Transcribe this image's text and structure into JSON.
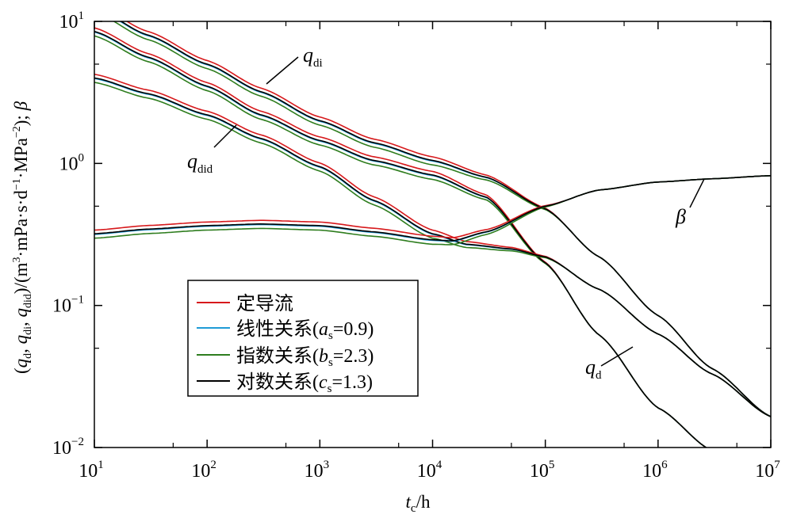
{
  "chart_data": {
    "type": "line",
    "x_scale": "log",
    "y_scale": "log",
    "xlim": [
      10,
      10000000
    ],
    "ylim": [
      0.01,
      10
    ],
    "x_ticks": [
      {
        "base": "10",
        "exp": "1"
      },
      {
        "base": "10",
        "exp": "2"
      },
      {
        "base": "10",
        "exp": "3"
      },
      {
        "base": "10",
        "exp": "4"
      },
      {
        "base": "10",
        "exp": "5"
      },
      {
        "base": "10",
        "exp": "6"
      },
      {
        "base": "10",
        "exp": "7"
      }
    ],
    "y_ticks": [
      {
        "base": "10",
        "exp": "1"
      },
      {
        "base": "10",
        "exp": "0"
      },
      {
        "base": "10",
        "exp": "−1"
      },
      {
        "base": "10",
        "exp": "−2"
      }
    ],
    "xlabel": {
      "var": "t",
      "sub": "c",
      "rest": "/h"
    },
    "ylabel": "(q_d, q_di, q_did)/(m³·mPa·s·d⁻¹·MPa⁻²); β",
    "ylabel_parts": {
      "open": "(",
      "q": "q",
      "sub_d": "d",
      "sep1": ", ",
      "sub_di": "di",
      "sep2": ", ",
      "sub_did": "did",
      "mid": ")/(m",
      "sup3": "3",
      "units1": "·mPa·s·d",
      "supm1": "−1",
      "units2": "·MPa",
      "supm2": "−2",
      "end": "); ",
      "beta": "β"
    },
    "annotations": [
      {
        "var": "q",
        "sub": "di"
      },
      {
        "var": "q",
        "sub": "did"
      },
      {
        "var": "β",
        "sub": ""
      },
      {
        "var": "q",
        "sub": "d"
      }
    ],
    "legend_position": "lower-left",
    "series_styles": [
      {
        "name": "定导流",
        "color": "#d7191c",
        "scale": 1.06
      },
      {
        "name": "线性关系",
        "color": "#1f9bd6",
        "scale": 0.99
      },
      {
        "name": "指数关系",
        "color": "#2e7d1e",
        "scale": 0.93
      },
      {
        "name": "对数关系",
        "color": "#000000",
        "scale": 1.0
      }
    ],
    "curves": {
      "q_di": {
        "x": [
          10,
          30,
          100,
          300,
          1000,
          3000,
          10000,
          30000,
          100000,
          300000,
          1000000,
          3000000,
          10000000
        ],
        "y": [
          12.5,
          8.0,
          5.0,
          3.2,
          2.0,
          1.4,
          1.05,
          0.8,
          0.48,
          0.22,
          0.085,
          0.036,
          0.0165
        ]
      },
      "q_d": {
        "x": [
          10,
          30,
          100,
          300,
          1000,
          3000,
          10000,
          30000,
          100000,
          300000,
          1000000,
          3000000
        ],
        "y": [
          8.5,
          5.6,
          3.5,
          2.2,
          1.45,
          1.05,
          0.83,
          0.58,
          0.2,
          0.062,
          0.019,
          0.0095
        ]
      },
      "q_did": {
        "x": [
          10,
          30,
          100,
          300,
          1000,
          3000,
          10000,
          20000,
          50000,
          100000,
          300000,
          1000000,
          3000000,
          10000000
        ],
        "y": [
          4.0,
          3.1,
          2.2,
          1.5,
          0.95,
          0.55,
          0.32,
          0.27,
          0.25,
          0.22,
          0.13,
          0.063,
          0.033,
          0.0165
        ]
      },
      "beta": {
        "x": [
          10,
          30,
          100,
          300,
          1000,
          3000,
          10000,
          15000,
          30000,
          100000,
          300000,
          1000000,
          3000000,
          10000000
        ],
        "y": [
          0.32,
          0.345,
          0.365,
          0.375,
          0.365,
          0.33,
          0.29,
          0.285,
          0.33,
          0.5,
          0.65,
          0.74,
          0.78,
          0.82
        ]
      }
    },
    "legend": [
      {
        "name": "定导流",
        "color": "#d7191c",
        "paren": ""
      },
      {
        "name": "线性关系",
        "color": "#1f9bd6",
        "paren": "(",
        "var": "a",
        "sub": "s",
        "value": "=0.9)"
      },
      {
        "name": "指数关系",
        "color": "#2e7d1e",
        "paren": "(",
        "var": "b",
        "sub": "s",
        "value": "=2.3)"
      },
      {
        "name": "对数关系",
        "color": "#000000",
        "paren": "(",
        "var": "c",
        "sub": "s",
        "value": "=1.3)"
      }
    ]
  }
}
